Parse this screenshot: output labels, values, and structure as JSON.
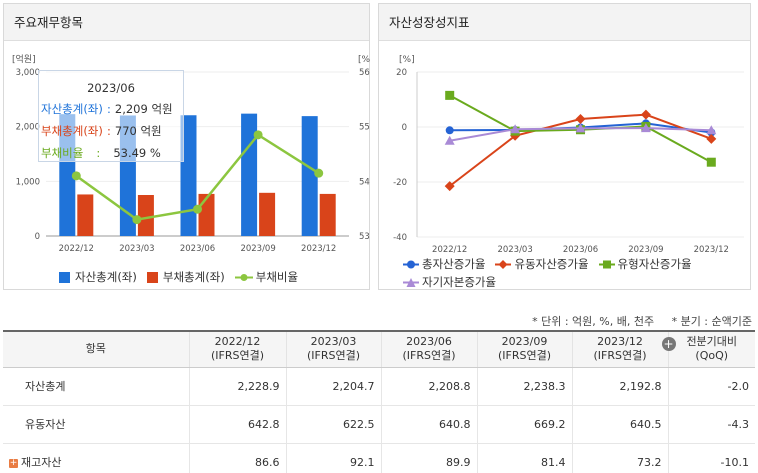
{
  "left_panel": {
    "title": "주요재무항목",
    "tooltip": {
      "title": "2023/06",
      "rows": [
        {
          "label": "자산총계(좌)",
          "value": "2,209 억원",
          "color": "#1f73d9"
        },
        {
          "label": "부채총계(좌)",
          "value": "770 억원",
          "color": "#d9441a"
        },
        {
          "label": "부채비율",
          "value": "53.49 %",
          "color": "#6aaa1e"
        }
      ]
    },
    "legend": [
      "자산총계(좌)",
      "부채총계(좌)",
      "부채비율"
    ]
  },
  "right_panel": {
    "title": "자산성장성지표",
    "legend": [
      "총자산증가율",
      "유동자산증가율",
      "유형자산증가율",
      "자기자본증가율"
    ]
  },
  "chart_data": [
    {
      "type": "bar",
      "categories": [
        "2022/12",
        "2023/03",
        "2023/06",
        "2023/09",
        "2023/12"
      ],
      "y_left_unit": "[억원]",
      "y_right_unit": "[%]",
      "ylim_left": [
        0,
        3000
      ],
      "ylim_right": [
        53,
        56
      ],
      "yticks_left": [
        "0",
        "1,000",
        "2,000",
        "3,000"
      ],
      "yticks_right": [
        "53",
        "54",
        "55",
        "56"
      ],
      "series": [
        {
          "name": "자산총계(좌)",
          "type": "bar",
          "axis": "left",
          "color": "#1f73d9",
          "values": [
            2228.9,
            2204.7,
            2208.8,
            2238.3,
            2192.8
          ]
        },
        {
          "name": "부채총계(좌)",
          "type": "bar",
          "axis": "left",
          "color": "#d9441a",
          "values": [
            760,
            750,
            770,
            790,
            770
          ]
        },
        {
          "name": "부채비율",
          "type": "line",
          "axis": "right",
          "color": "#8cc63f",
          "values": [
            54.1,
            53.3,
            53.49,
            54.85,
            54.15
          ]
        }
      ]
    },
    {
      "type": "line",
      "categories": [
        "2022/12",
        "2023/03",
        "2023/06",
        "2023/09",
        "2023/12"
      ],
      "y_unit": "[%]",
      "ylim": [
        -40,
        20
      ],
      "yticks": [
        "-40",
        "-20",
        "0",
        "20"
      ],
      "series": [
        {
          "name": "총자산증가율",
          "color": "#2563d4",
          "marker": "circle",
          "values": [
            -1.2,
            -1.1,
            -0.2,
            1.3,
            -2.0
          ]
        },
        {
          "name": "유동자산증가율",
          "color": "#d9441a",
          "marker": "diamond",
          "values": [
            -21.5,
            -3.2,
            2.9,
            4.5,
            -4.3
          ]
        },
        {
          "name": "유형자산증가율",
          "color": "#6aaa1e",
          "marker": "square",
          "values": [
            11.5,
            -1.5,
            -1.0,
            0.2,
            -12.8
          ]
        },
        {
          "name": "자기자본증가율",
          "color": "#a98ad6",
          "marker": "triangle",
          "values": [
            -5.0,
            -0.8,
            -0.5,
            -0.4,
            -1.2
          ]
        }
      ]
    }
  ],
  "notes": {
    "unit": "* 단위 : 억원, %, 배, 천주",
    "basis": "* 분기 : 순액기준"
  },
  "table": {
    "headers": [
      "항목",
      "2022/12",
      "2023/03",
      "2023/06",
      "2023/09",
      "2023/12",
      "전분기대비"
    ],
    "sub_headers": [
      "",
      "(IFRS연결)",
      "(IFRS연결)",
      "(IFRS연결)",
      "(IFRS연결)",
      "(IFRS연결)",
      "(QoQ)"
    ],
    "rows": [
      {
        "label": "자산총계",
        "values": [
          "2,228.9",
          "2,204.7",
          "2,208.8",
          "2,238.3",
          "2,192.8"
        ],
        "qoq": "-2.0",
        "expand": false
      },
      {
        "label": "유동자산",
        "values": [
          "642.8",
          "622.5",
          "640.8",
          "669.2",
          "640.5"
        ],
        "qoq": "-4.3",
        "expand": false
      },
      {
        "label": "재고자산",
        "values": [
          "86.6",
          "92.1",
          "89.9",
          "81.4",
          "73.2"
        ],
        "qoq": "-10.1",
        "expand": true
      }
    ]
  }
}
